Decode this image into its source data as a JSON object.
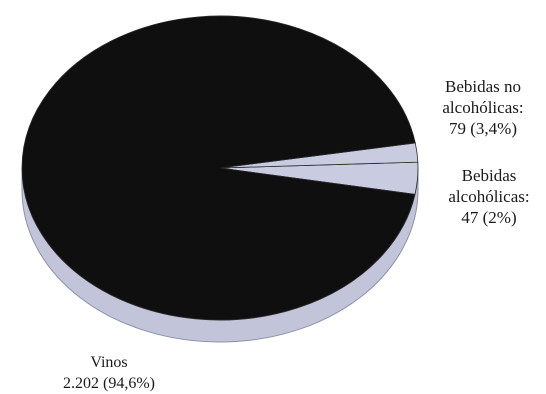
{
  "chart_data": {
    "type": "pie",
    "title": "",
    "slices": [
      {
        "label": "Bebidas no alcohólicas",
        "label_lines": [
          "Bebidas no",
          "alcohólicas:"
        ],
        "value_text": "79 (3,4%)",
        "value": 79,
        "percent": 3.4,
        "color": "#c9cbe0"
      },
      {
        "label": "Bebidas alcohólicas",
        "label_lines": [
          "Bebidas",
          "alcohólicas:"
        ],
        "value_text": "47 (2%)",
        "value": 47,
        "percent": 2.0,
        "color": "#c9cbe0"
      },
      {
        "label": "Vinos",
        "label_lines": [
          "Vinos"
        ],
        "value_text": "2.202 (94,6%)",
        "value": 2202,
        "percent": 94.6,
        "color": "#0f0f0f"
      }
    ],
    "style": {
      "three_d": true,
      "side_color": "#c2c4da",
      "edge_color": "#8e90a8"
    }
  }
}
